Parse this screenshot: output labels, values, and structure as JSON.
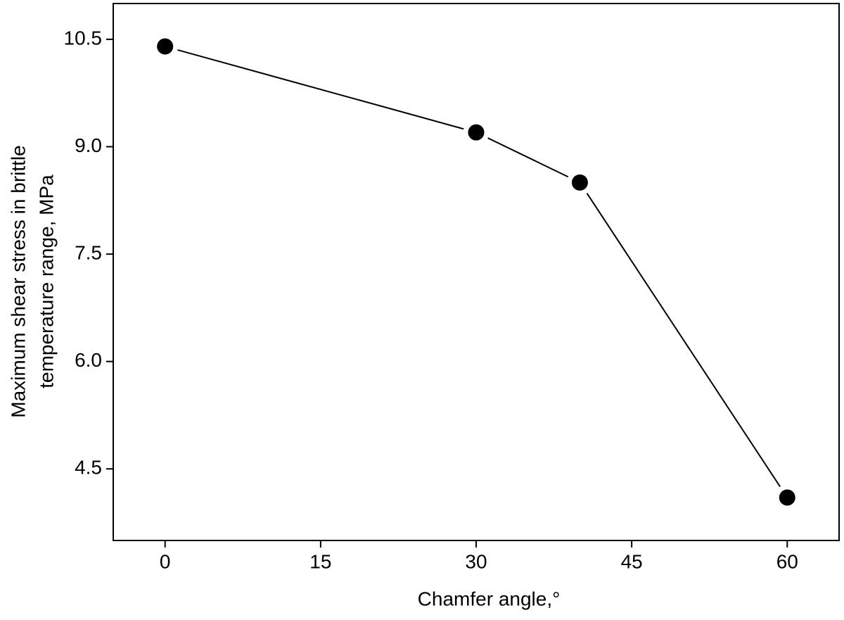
{
  "chart_data": {
    "type": "line",
    "x_label": "Chamfer angle,°",
    "y_label": [
      "Maximum shear stress in brittle",
      "temperature range, MPa"
    ],
    "x": [
      0,
      30,
      40,
      60
    ],
    "series": [
      {
        "name": "Maximum shear stress",
        "color": "#000000",
        "values": [
          10.4,
          9.2,
          8.5,
          4.1
        ]
      }
    ],
    "xlim": [
      -5,
      65
    ],
    "xticks": [
      0,
      15,
      30,
      45,
      60
    ],
    "ylim": [
      3.5,
      11.0
    ],
    "yticks": [
      {
        "value": 4.5,
        "label": "4.5"
      },
      {
        "value": 6.0,
        "label": "6.0"
      },
      {
        "value": 7.5,
        "label": "7.5"
      },
      {
        "value": 9.0,
        "label": "9.0"
      },
      {
        "value": 10.5,
        "label": "10.5"
      }
    ],
    "grid": false
  }
}
